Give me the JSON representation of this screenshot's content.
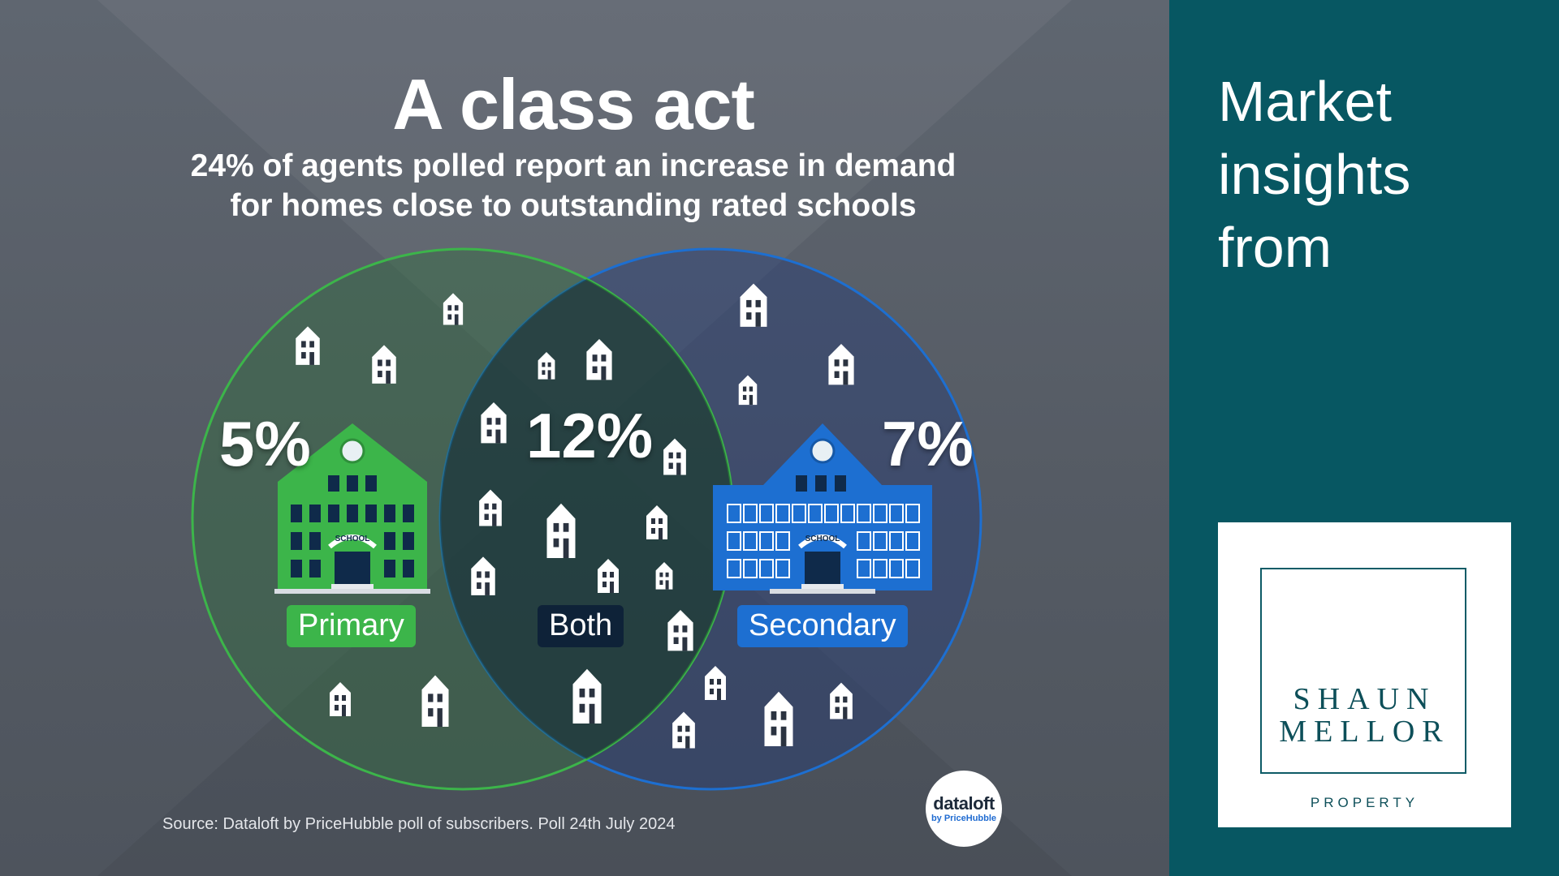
{
  "infographic": {
    "title": "A class act",
    "subtitle_line1": "24% of agents polled report an increase in demand",
    "subtitle_line2": "for homes close to outstanding rated schools",
    "source": "Source: Dataloft by PriceHubble poll of subscribers. Poll 24th July 2024",
    "school_sign_text": "SCHOOL",
    "colors": {
      "primary": "#3cb54a",
      "secondary": "#1d6fd1",
      "both": "#0e2238"
    }
  },
  "chart_data": {
    "type": "venn",
    "title": "A class act",
    "sets": [
      {
        "name": "Primary",
        "value": 5,
        "label": "5%"
      },
      {
        "name": "Both",
        "value": 12,
        "label": "12%"
      },
      {
        "name": "Secondary",
        "value": 7,
        "label": "7%"
      }
    ],
    "unit": "%"
  },
  "dataloft_logo": {
    "main": "dataloft",
    "sub": "by PriceHubble"
  },
  "sidebar": {
    "heading_lines": [
      "Market",
      "insights",
      "from"
    ],
    "brand": {
      "line1": "SHAUN",
      "line2": "MELLOR",
      "sub": "PROPERTY"
    }
  }
}
